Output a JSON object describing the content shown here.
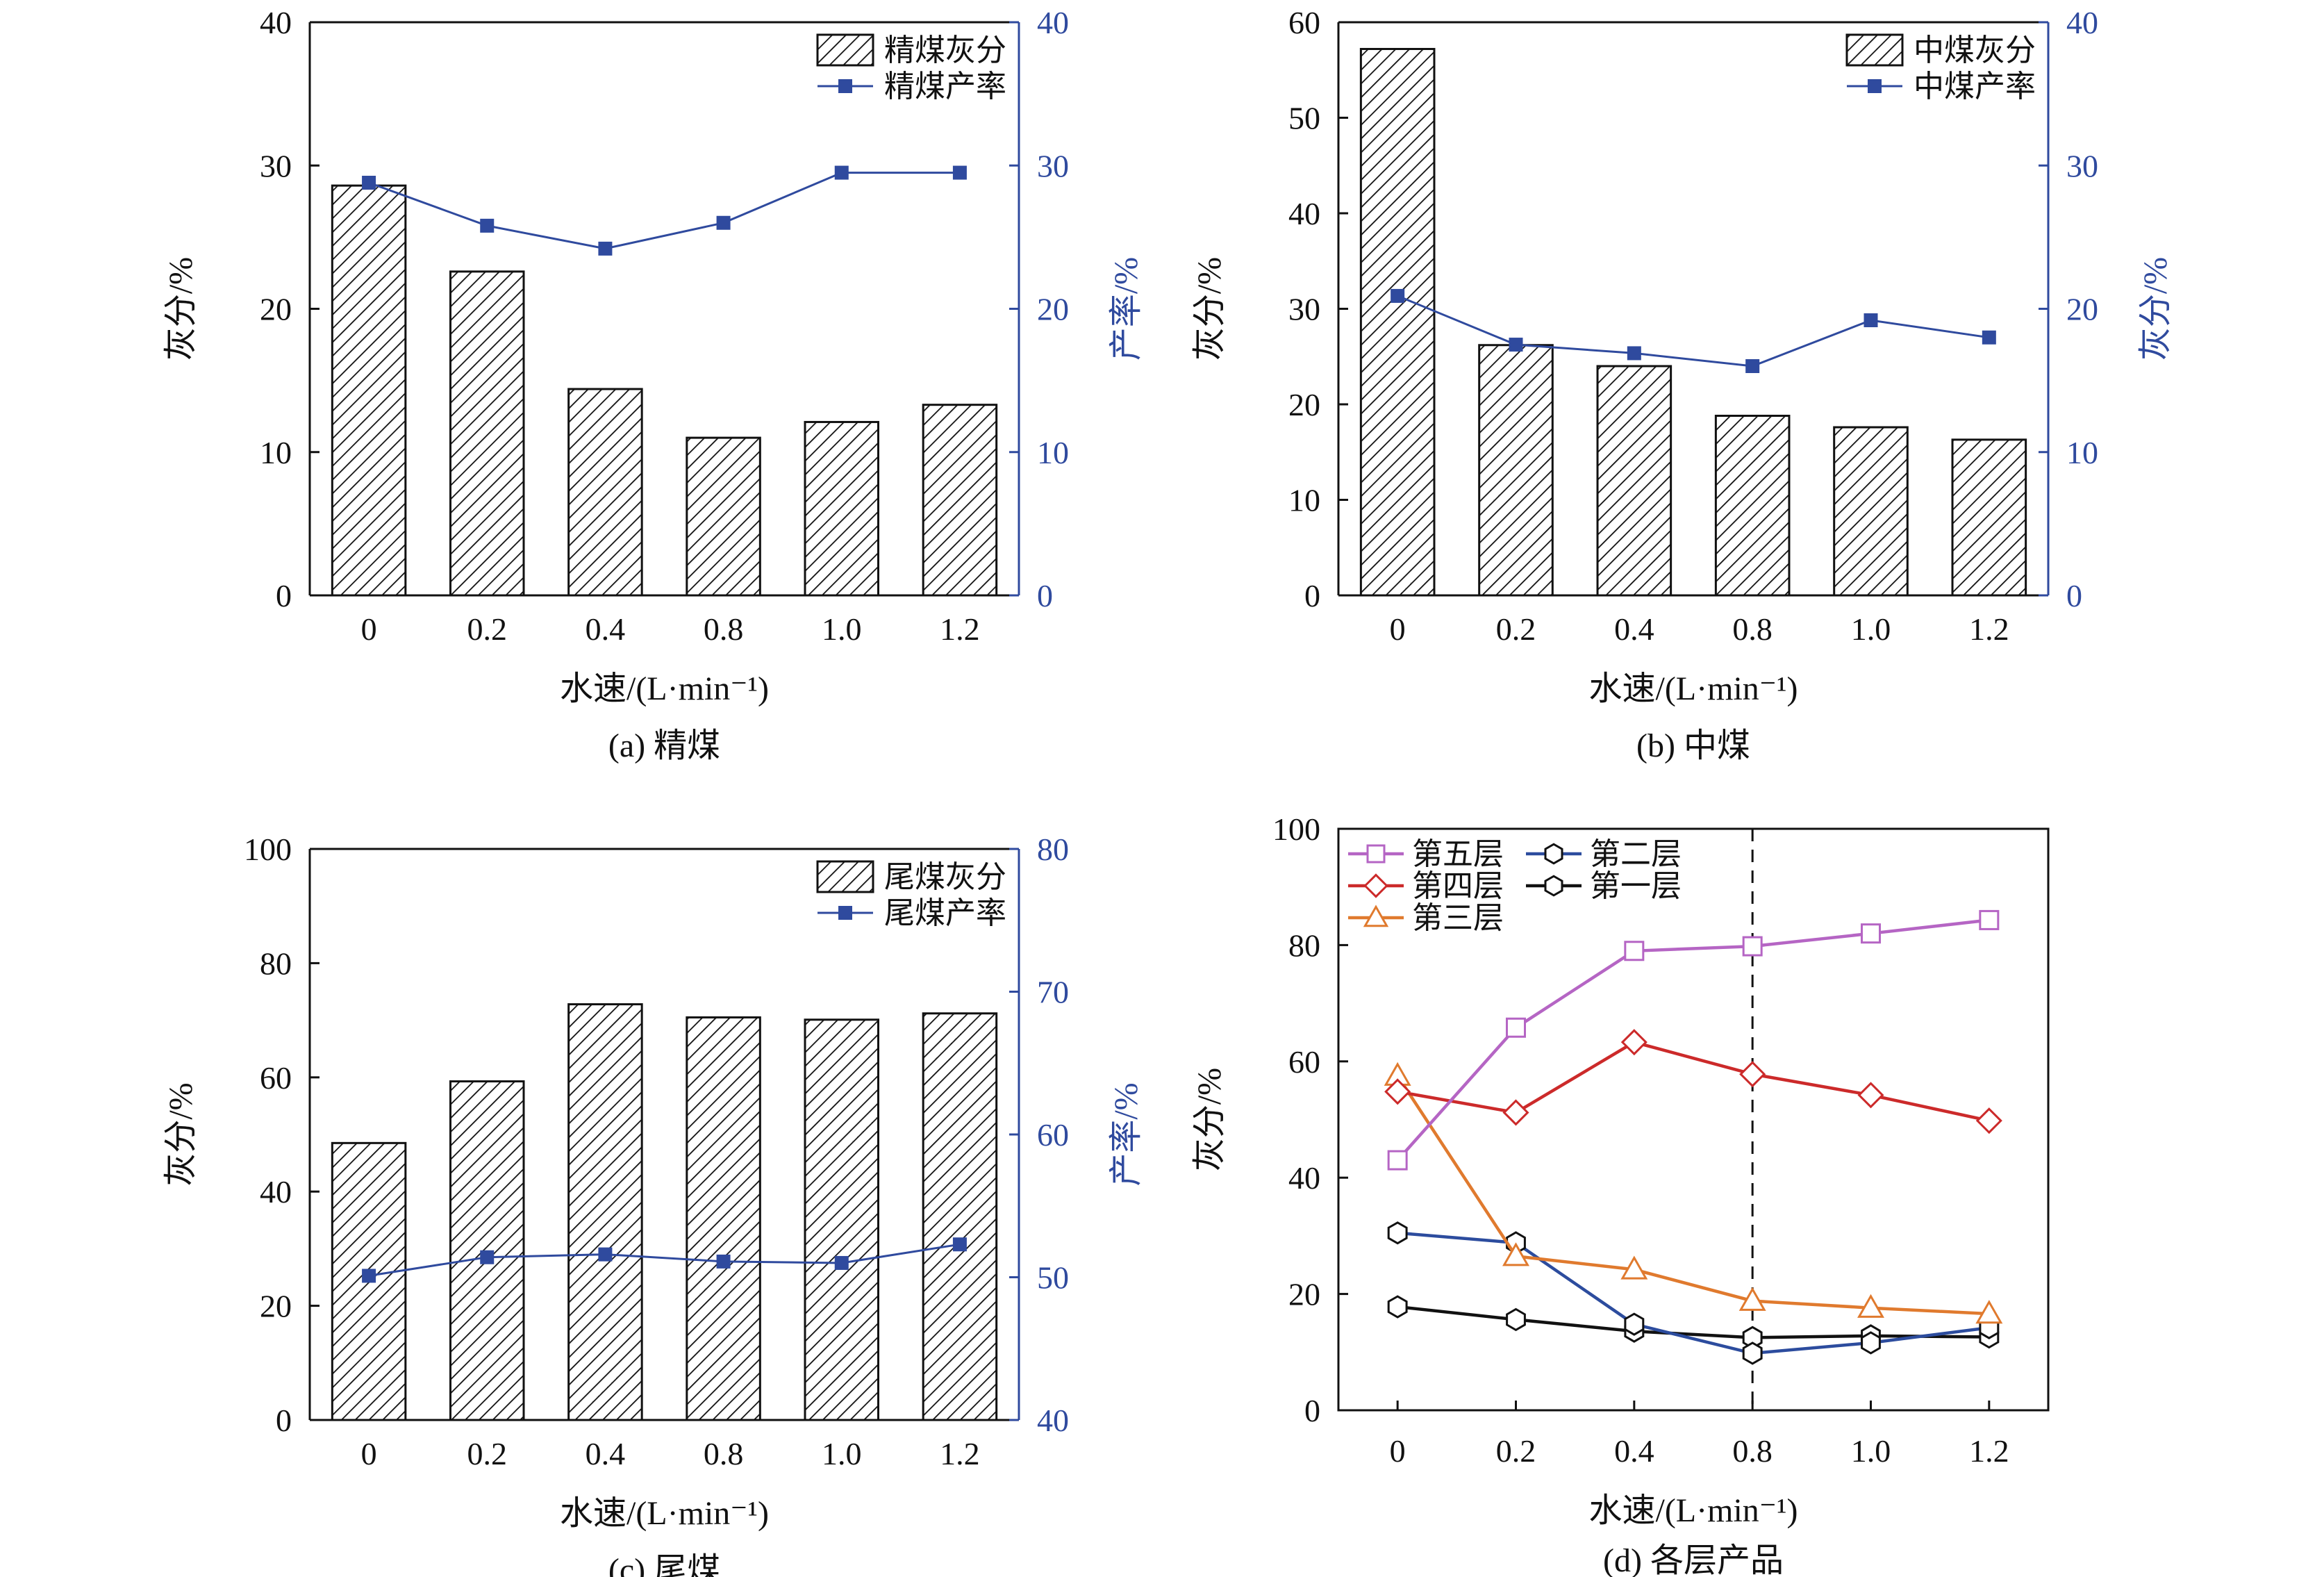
{
  "chart_data": [
    {
      "type": "bar",
      "caption": "(a) 精煤",
      "xlabel": "水速/(L·min⁻¹)",
      "ylabel": "灰分/%",
      "ylabel_right": "产率/%",
      "categories": [
        "0",
        "0.2",
        "0.4",
        "0.8",
        "1.0",
        "1.2"
      ],
      "ylim": [
        0,
        40
      ],
      "yticks": [
        "0",
        "10",
        "20",
        "30",
        "40"
      ],
      "ylim_right": [
        0,
        40
      ],
      "yticks_right": [
        "0",
        "10",
        "20",
        "30",
        "40"
      ],
      "legend_position": "top-right",
      "bar_series": {
        "name": "精煤灰分",
        "values": [
          28.6,
          22.6,
          14.4,
          11.0,
          12.1,
          13.3
        ]
      },
      "line_series": {
        "name": "精煤产率",
        "values": [
          28.8,
          25.8,
          24.2,
          26.0,
          29.5,
          29.5
        ],
        "color": "#2f4a9e"
      }
    },
    {
      "type": "bar",
      "caption": "(b) 中煤",
      "xlabel": "水速/(L·min⁻¹)",
      "ylabel": "灰分/%",
      "ylabel_right": "灰分/%",
      "categories": [
        "0",
        "0.2",
        "0.4",
        "0.8",
        "1.0",
        "1.2"
      ],
      "ylim": [
        0,
        60
      ],
      "yticks": [
        "0",
        "10",
        "20",
        "30",
        "40",
        "50",
        "60"
      ],
      "ylim_right": [
        0,
        40
      ],
      "yticks_right": [
        "0",
        "10",
        "20",
        "30",
        "40"
      ],
      "legend_position": "top-right",
      "bar_series": {
        "name": "中煤灰分",
        "values": [
          57.2,
          26.2,
          24.0,
          18.8,
          17.6,
          16.3
        ]
      },
      "line_series": {
        "name": "中煤产率",
        "values": [
          20.9,
          17.5,
          16.9,
          16.0,
          19.2,
          18.0
        ],
        "color": "#2f4a9e"
      }
    },
    {
      "type": "bar",
      "caption": "(c) 尾煤",
      "xlabel": "水速/(L·min⁻¹)",
      "ylabel": "灰分/%",
      "ylabel_right": "产率/%",
      "categories": [
        "0",
        "0.2",
        "0.4",
        "0.8",
        "1.0",
        "1.2"
      ],
      "ylim": [
        0,
        100
      ],
      "yticks": [
        "0",
        "20",
        "40",
        "60",
        "80",
        "100"
      ],
      "ylim_right": [
        40,
        80
      ],
      "yticks_right": [
        "40",
        "50",
        "60",
        "70",
        "80"
      ],
      "legend_position": "top-right",
      "bar_series": {
        "name": "尾煤灰分",
        "values": [
          48.5,
          59.3,
          72.8,
          70.5,
          70.1,
          71.2
        ]
      },
      "line_series": {
        "name": "尾煤产率",
        "values": [
          50.1,
          51.4,
          51.6,
          51.1,
          51.0,
          52.3
        ],
        "color": "#2f4a9e"
      }
    },
    {
      "type": "line",
      "caption": "(d) 各层产品",
      "xlabel": "水速/(L·min⁻¹)",
      "ylabel": "灰分/%",
      "categories": [
        "0",
        "0.2",
        "0.4",
        "0.8",
        "1.0",
        "1.2"
      ],
      "ylim": [
        0,
        100
      ],
      "yticks": [
        "0",
        "20",
        "40",
        "60",
        "80",
        "100"
      ],
      "legend_position": "top-left",
      "reference_line_at": "0.8",
      "series": [
        {
          "name": "第五层",
          "marker": "square",
          "color": "#b565c4",
          "values": [
            43.0,
            65.8,
            79.0,
            79.8,
            82.0,
            84.3
          ]
        },
        {
          "name": "第四层",
          "marker": "diamond",
          "color": "#cc2a2a",
          "values": [
            54.8,
            51.2,
            63.3,
            57.8,
            54.2,
            49.8
          ]
        },
        {
          "name": "第三层",
          "marker": "triangle",
          "color": "#e07a2e",
          "values": [
            57.5,
            26.5,
            24.2,
            18.8,
            17.6,
            16.6
          ]
        },
        {
          "name": "第二层",
          "marker": "hexagon",
          "color": "#2c4c9e",
          "values": [
            30.5,
            28.8,
            14.8,
            9.8,
            11.6,
            14.2
          ]
        },
        {
          "name": "第一层",
          "marker": "hexagon",
          "color": "#111111",
          "values": [
            17.8,
            15.6,
            13.6,
            12.5,
            12.8,
            12.6
          ]
        }
      ]
    }
  ]
}
